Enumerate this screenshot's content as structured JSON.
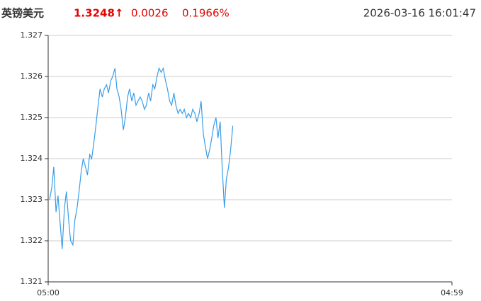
{
  "quote": {
    "name": "英镑美元",
    "price": "1.3248↑",
    "change": "0.0026",
    "change_pct": "0.1966%",
    "time": "2026-03-16 16:01:47",
    "color": "#e60000"
  },
  "chart_data": {
    "type": "line",
    "xlim": [
      0,
      1439
    ],
    "xticks": [
      {
        "value": 0,
        "label": "05:00"
      },
      {
        "value": 1439,
        "label": "04:59"
      }
    ],
    "ylim": [
      1.321,
      1.327
    ],
    "yticks": [
      1.321,
      1.322,
      1.323,
      1.324,
      1.325,
      1.326,
      1.327
    ],
    "grid": true,
    "series": [
      {
        "color": "#3a9ee8",
        "x": [
          5,
          13,
          20,
          28,
          35,
          43,
          50,
          58,
          65,
          73,
          80,
          88,
          95,
          103,
          110,
          118,
          125,
          133,
          140,
          148,
          155,
          163,
          170,
          178,
          185,
          193,
          200,
          208,
          215,
          223,
          230,
          238,
          245,
          253,
          260,
          268,
          275,
          283,
          290,
          298,
          305,
          313,
          320,
          328,
          335,
          343,
          350,
          358,
          365,
          373,
          380,
          388,
          395,
          403,
          410,
          418,
          425,
          433,
          440,
          448,
          455,
          463,
          470,
          478,
          485,
          493,
          500,
          508,
          515,
          523,
          530,
          538,
          545,
          553,
          560,
          568,
          575,
          583,
          590,
          598,
          605,
          613,
          620,
          628,
          635,
          643,
          650,
          658
        ],
        "values": [
          1.323,
          1.3233,
          1.3238,
          1.3227,
          1.3231,
          1.3224,
          1.3218,
          1.3228,
          1.3232,
          1.3225,
          1.322,
          1.3219,
          1.3225,
          1.3228,
          1.3232,
          1.3237,
          1.324,
          1.3238,
          1.3236,
          1.3241,
          1.324,
          1.3244,
          1.3248,
          1.3253,
          1.3257,
          1.3255,
          1.3257,
          1.3258,
          1.3256,
          1.3259,
          1.326,
          1.3262,
          1.3257,
          1.3255,
          1.3252,
          1.3247,
          1.325,
          1.3255,
          1.3257,
          1.3254,
          1.3256,
          1.3253,
          1.3254,
          1.3255,
          1.3254,
          1.3252,
          1.3253,
          1.3256,
          1.3254,
          1.3258,
          1.3257,
          1.326,
          1.3262,
          1.3261,
          1.3262,
          1.3259,
          1.3257,
          1.3254,
          1.3253,
          1.3256,
          1.3253,
          1.3251,
          1.3252,
          1.3251,
          1.3252,
          1.325,
          1.3251,
          1.325,
          1.3252,
          1.3251,
          1.3249,
          1.3251,
          1.3254,
          1.3246,
          1.3243,
          1.324,
          1.3242,
          1.3245,
          1.3248,
          1.325,
          1.3245,
          1.3249,
          1.3238,
          1.3228,
          1.3235,
          1.3238,
          1.3242,
          1.3248
        ]
      }
    ]
  }
}
